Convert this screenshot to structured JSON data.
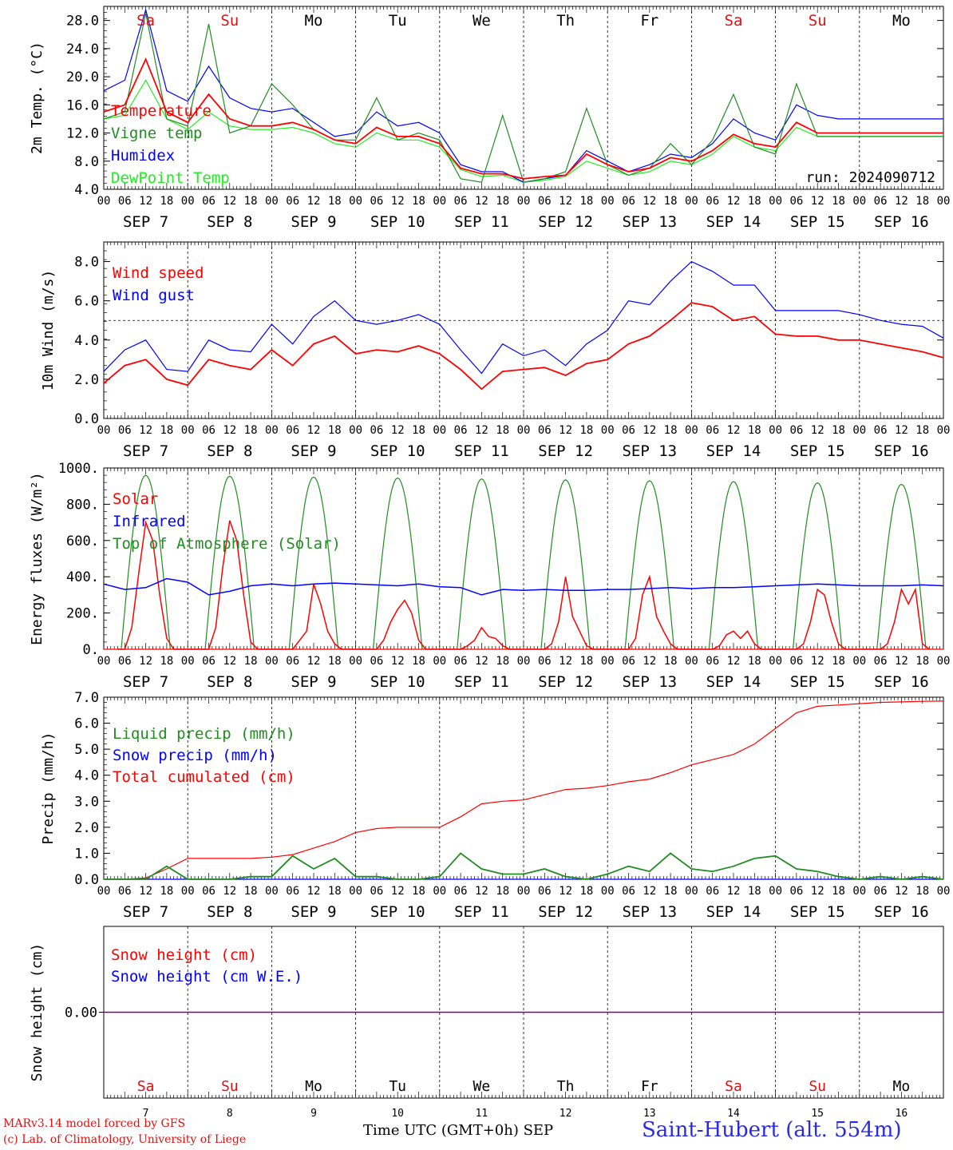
{
  "chart_data": [
    {
      "type": "line",
      "ylabel": "2m Temp. (°C)",
      "ylim": [
        4.0,
        30.0
      ],
      "yticks": [
        "4.0",
        "8.0",
        "12.0",
        "16.0",
        "20.0",
        "24.0",
        "28.0"
      ],
      "annotation": "run: 2024090712",
      "x_hours": [
        0,
        6,
        12,
        18,
        24,
        30,
        36,
        42,
        48,
        54,
        60,
        66,
        72,
        78,
        84,
        90,
        96,
        102,
        108,
        114,
        120,
        126,
        132,
        138,
        144,
        150,
        156,
        162,
        168,
        174,
        180,
        186,
        192,
        198,
        204,
        210,
        216,
        222,
        228,
        234,
        240
      ],
      "series": [
        {
          "name": "Temperature",
          "color": "#ff0000",
          "values": [
            15.0,
            16.0,
            22.5,
            15.0,
            13.5,
            17.5,
            14.0,
            13.0,
            13.0,
            13.5,
            12.5,
            11.0,
            10.5,
            12.8,
            11.5,
            11.5,
            10.5,
            7.0,
            6.2,
            6.2,
            5.5,
            5.8,
            6.0,
            9.0,
            7.5,
            6.5,
            7.0,
            8.5,
            8.0,
            9.5,
            11.8,
            10.5,
            10.0,
            13.5,
            12.0,
            12.0,
            12.0,
            12.0,
            12.0,
            12.0,
            12.0
          ]
        },
        {
          "name": "Vigne temp",
          "color": "#228b22",
          "values": [
            14.0,
            15.0,
            29.0,
            14.0,
            13.0,
            27.5,
            12.0,
            13.0,
            19.0,
            16.0,
            12.5,
            11.0,
            11.0,
            17.0,
            11.0,
            12.0,
            11.0,
            5.5,
            5.0,
            14.5,
            5.0,
            5.5,
            6.5,
            15.5,
            7.5,
            6.0,
            7.0,
            10.5,
            7.5,
            11.0,
            17.5,
            10.0,
            9.0,
            19.0,
            11.5,
            11.5,
            11.5,
            11.5,
            11.5,
            11.5,
            11.5
          ]
        },
        {
          "name": "Humidex",
          "color": "#0000ff",
          "values": [
            18.0,
            19.5,
            29.5,
            18.0,
            16.5,
            21.5,
            17.0,
            15.5,
            15.0,
            15.5,
            13.5,
            11.5,
            12.0,
            15.0,
            13.0,
            13.5,
            12.0,
            7.5,
            6.5,
            6.5,
            5.0,
            5.5,
            6.0,
            9.5,
            8.0,
            6.5,
            7.5,
            9.0,
            8.5,
            10.5,
            14.0,
            12.0,
            11.0,
            16.0,
            14.5,
            14.0,
            14.0,
            14.0,
            14.0,
            14.0,
            14.0
          ]
        },
        {
          "name": "DewPoint Temp",
          "color": "#22ee22",
          "values": [
            14.0,
            14.5,
            19.5,
            14.0,
            12.5,
            15.0,
            13.0,
            12.5,
            12.5,
            12.8,
            12.0,
            10.5,
            10.0,
            12.0,
            11.0,
            11.0,
            10.0,
            6.8,
            5.8,
            6.0,
            5.0,
            5.3,
            5.8,
            8.0,
            7.0,
            6.0,
            6.5,
            8.0,
            7.5,
            9.0,
            11.5,
            10.0,
            9.5,
            12.8,
            11.5,
            11.5,
            11.5,
            11.5,
            11.5,
            11.5,
            11.5
          ]
        }
      ]
    },
    {
      "type": "line",
      "ylabel": "10m Wind (m/s)",
      "ylim": [
        0.0,
        9.0
      ],
      "yticks": [
        "0.0",
        "2.0",
        "4.0",
        "6.0",
        "8.0"
      ],
      "reference_line": 5.0,
      "x_hours": [
        0,
        6,
        12,
        18,
        24,
        30,
        36,
        42,
        48,
        54,
        60,
        66,
        72,
        78,
        84,
        90,
        96,
        102,
        108,
        114,
        120,
        126,
        132,
        138,
        144,
        150,
        156,
        162,
        168,
        174,
        180,
        186,
        192,
        198,
        204,
        210,
        216,
        222,
        228,
        234,
        240
      ],
      "series": [
        {
          "name": "Wind speed",
          "color": "#ff0000",
          "values": [
            1.8,
            2.7,
            3.0,
            2.0,
            1.7,
            3.0,
            2.7,
            2.5,
            3.5,
            2.7,
            3.8,
            4.2,
            3.3,
            3.5,
            3.4,
            3.7,
            3.3,
            2.5,
            1.5,
            2.4,
            2.5,
            2.6,
            2.2,
            2.8,
            3.0,
            3.8,
            4.2,
            5.0,
            5.9,
            5.7,
            5.0,
            5.2,
            4.3,
            4.2,
            4.2,
            4.0,
            4.0,
            3.8,
            3.6,
            3.4,
            3.1
          ]
        },
        {
          "name": "Wind gust",
          "color": "#0000ff",
          "values": [
            2.4,
            3.5,
            4.0,
            2.5,
            2.4,
            4.0,
            3.5,
            3.4,
            4.8,
            3.8,
            5.2,
            6.0,
            5.0,
            4.8,
            5.0,
            5.3,
            4.8,
            3.5,
            2.3,
            3.8,
            3.2,
            3.5,
            2.7,
            3.8,
            4.5,
            6.0,
            5.8,
            7.0,
            8.0,
            7.5,
            6.8,
            6.8,
            5.5,
            5.5,
            5.5,
            5.5,
            5.3,
            5.0,
            4.8,
            4.7,
            4.1
          ]
        }
      ]
    },
    {
      "type": "line",
      "ylabel": "Energy fluxes (W/m²)",
      "ylim": [
        0,
        1000
      ],
      "yticks": [
        "0.",
        "200.",
        "400.",
        "600.",
        "800.",
        "1000."
      ],
      "toa_peaks": [
        960,
        955,
        950,
        945,
        940,
        935,
        930,
        925,
        918,
        910
      ],
      "solar_days": [
        [
          0,
          0,
          120,
          420,
          700,
          600,
          300,
          60,
          0
        ],
        [
          0,
          0,
          120,
          450,
          710,
          600,
          300,
          40,
          0
        ],
        [
          0,
          0,
          50,
          100,
          360,
          250,
          100,
          30,
          0
        ],
        [
          0,
          0,
          50,
          150,
          220,
          270,
          200,
          50,
          0
        ],
        [
          0,
          0,
          20,
          50,
          120,
          70,
          60,
          20,
          0
        ],
        [
          0,
          0,
          30,
          150,
          400,
          180,
          100,
          20,
          0
        ],
        [
          0,
          0,
          60,
          300,
          400,
          180,
          100,
          30,
          0
        ],
        [
          0,
          0,
          20,
          80,
          100,
          60,
          100,
          30,
          0
        ],
        [
          0,
          0,
          30,
          150,
          330,
          300,
          150,
          30,
          0
        ],
        [
          0,
          0,
          30,
          150,
          330,
          250,
          330,
          30,
          0
        ]
      ],
      "infrared_hours": [
        0,
        6,
        12,
        18,
        24,
        30,
        36,
        42,
        48,
        54,
        60,
        66,
        72,
        78,
        84,
        90,
        96,
        102,
        108,
        114,
        120,
        126,
        132,
        138,
        144,
        150,
        156,
        162,
        168,
        174,
        180,
        186,
        192,
        198,
        204,
        210,
        216,
        222,
        228,
        234,
        240
      ],
      "infrared": [
        360,
        330,
        340,
        390,
        370,
        300,
        320,
        350,
        360,
        350,
        360,
        365,
        360,
        355,
        350,
        360,
        345,
        340,
        300,
        330,
        325,
        330,
        325,
        325,
        330,
        330,
        335,
        340,
        335,
        340,
        340,
        345,
        350,
        355,
        360,
        355,
        350,
        350,
        350,
        355,
        350
      ],
      "series": [
        {
          "name": "Solar",
          "color": "#ff0000"
        },
        {
          "name": "Infrared",
          "color": "#0000ff"
        },
        {
          "name": "Top of Atmosphere (Solar)",
          "color": "#228b22"
        }
      ]
    },
    {
      "type": "line",
      "ylabel": "Precip (mm/h)",
      "ylim": [
        0.0,
        7.0
      ],
      "yticks": [
        "0.0",
        "1.0",
        "2.0",
        "3.0",
        "4.0",
        "5.0",
        "6.0",
        "7.0"
      ],
      "x_hours": [
        0,
        6,
        12,
        18,
        24,
        30,
        36,
        42,
        48,
        54,
        60,
        66,
        72,
        78,
        84,
        90,
        96,
        102,
        108,
        114,
        120,
        126,
        132,
        138,
        144,
        150,
        156,
        162,
        168,
        174,
        180,
        186,
        192,
        198,
        204,
        210,
        216,
        222,
        228,
        234,
        240
      ],
      "series": [
        {
          "name": "Liquid precip (mm/h)",
          "color": "#228b22",
          "values": [
            0.0,
            0.0,
            0.0,
            0.5,
            0.0,
            0.0,
            0.0,
            0.1,
            0.1,
            0.9,
            0.4,
            0.8,
            0.1,
            0.1,
            0.0,
            0.0,
            0.1,
            1.0,
            0.4,
            0.2,
            0.2,
            0.4,
            0.1,
            0.0,
            0.2,
            0.5,
            0.3,
            1.0,
            0.4,
            0.3,
            0.5,
            0.8,
            0.9,
            0.4,
            0.3,
            0.1,
            0.0,
            0.1,
            0.0,
            0.1,
            0.0
          ]
        },
        {
          "name": "Snow precip (mm/h)",
          "color": "#0000ff",
          "values": [
            0.0,
            0.0,
            0.0,
            0.0,
            0.0,
            0.0,
            0.0,
            0.0,
            0.0,
            0.0,
            0.0,
            0.0,
            0.0,
            0.0,
            0.0,
            0.0,
            0.0,
            0.0,
            0.0,
            0.0,
            0.0,
            0.0,
            0.0,
            0.0,
            0.0,
            0.0,
            0.0,
            0.0,
            0.0,
            0.0,
            0.0,
            0.0,
            0.0,
            0.0,
            0.0,
            0.0,
            0.0,
            0.0,
            0.0,
            0.0,
            0.0
          ]
        },
        {
          "name": "Total cumulated (cm)",
          "color": "#ff0000",
          "values": [
            0.0,
            0.0,
            0.05,
            0.4,
            0.8,
            0.8,
            0.8,
            0.8,
            0.85,
            0.95,
            1.2,
            1.45,
            1.8,
            1.95,
            2.0,
            2.0,
            2.0,
            2.4,
            2.9,
            3.0,
            3.05,
            3.25,
            3.45,
            3.5,
            3.6,
            3.75,
            3.85,
            4.1,
            4.4,
            4.6,
            4.8,
            5.2,
            5.8,
            6.4,
            6.65,
            6.7,
            6.75,
            6.8,
            6.82,
            6.84,
            6.85
          ]
        }
      ]
    },
    {
      "type": "line",
      "ylabel": "Snow height (cm)",
      "yticks": [
        "0.00"
      ],
      "series": [
        {
          "name": "Snow height (cm)",
          "color": "#ff0000",
          "values": [
            0,
            0
          ]
        },
        {
          "name": "Snow height (cm W.E.)",
          "color": "#0000ff",
          "values": [
            0,
            0
          ]
        }
      ]
    }
  ],
  "days": [
    {
      "abbr": "Sa",
      "num": "7",
      "weekend": true
    },
    {
      "abbr": "Su",
      "num": "8",
      "weekend": true
    },
    {
      "abbr": "Mo",
      "num": "9",
      "weekend": false
    },
    {
      "abbr": "Tu",
      "num": "10",
      "weekend": false
    },
    {
      "abbr": "We",
      "num": "11",
      "weekend": false
    },
    {
      "abbr": "Th",
      "num": "12",
      "weekend": false
    },
    {
      "abbr": "Fr",
      "num": "13",
      "weekend": false
    },
    {
      "abbr": "Sa",
      "num": "14",
      "weekend": true
    },
    {
      "abbr": "Su",
      "num": "15",
      "weekend": true
    },
    {
      "abbr": "Mo",
      "num": "16",
      "weekend": false
    }
  ],
  "month": "SEP",
  "hour_labels": [
    "00",
    "06",
    "12",
    "18"
  ],
  "footer": {
    "credits_line1": "MARv3.14 model forced by GFS",
    "credits_line2": "(c) Lab. of Climatology, University of Liege",
    "xlabel": "Time UTC (GMT+0h) SEP",
    "station": "Saint-Hubert (alt. 554m)"
  }
}
